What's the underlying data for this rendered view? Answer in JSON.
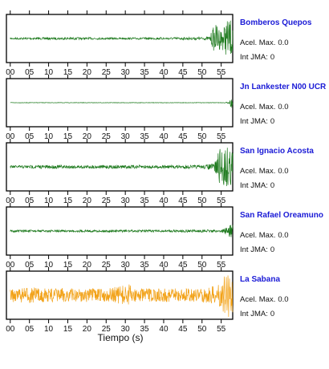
{
  "colors": {
    "trace": "#1e7a1e",
    "highlight_trace": "#f2a218",
    "station_name": "#1a1ad6"
  },
  "stations": [
    {
      "name": "Bomberos Quepos",
      "acel_label": "Acel. Max.",
      "acel_value": "0.0",
      "jma_label": "Int JMA:",
      "jma_value": "0"
    },
    {
      "name": "Jn Lankester N00 UCR",
      "acel_label": "Acel. Max.",
      "acel_value": "0.0",
      "jma_label": "Int JMA:",
      "jma_value": "0"
    },
    {
      "name": "San Ignacio Acosta",
      "acel_label": "Acel. Max.",
      "acel_value": "0.0",
      "jma_label": "Int JMA:",
      "jma_value": "0"
    },
    {
      "name": "San Rafael Oreamuno",
      "acel_label": "Acel. Max.",
      "acel_value": "0.0",
      "jma_label": "Int JMA:",
      "jma_value": "0"
    },
    {
      "name": "La Sabana",
      "acel_label": "Acel. Max.",
      "acel_value": "0.0",
      "jma_label": "Int JMA:",
      "jma_value": "0"
    }
  ],
  "x_label": "Tiempo (s)",
  "chart_data": {
    "type": "line",
    "xlim": [
      -1,
      58
    ],
    "x_ticks": [
      0,
      5,
      10,
      15,
      20,
      25,
      30,
      35,
      40,
      45,
      50,
      55
    ],
    "x_tick_labels": [
      "00",
      "05",
      "10",
      "15",
      "20",
      "25",
      "30",
      "35",
      "40",
      "45",
      "50",
      "55"
    ],
    "series": [
      {
        "name": "Bomberos Quepos",
        "color": "#1e7a1e",
        "envelope": [
          [
            0,
            0.04
          ],
          [
            10,
            0.05
          ],
          [
            20,
            0.05
          ],
          [
            30,
            0.04
          ],
          [
            40,
            0.05
          ],
          [
            50,
            0.06
          ],
          [
            52,
            0.08
          ],
          [
            53,
            0.55
          ],
          [
            54,
            0.65
          ],
          [
            55,
            0.4
          ],
          [
            56,
            0.7
          ],
          [
            57,
            0.85
          ],
          [
            58,
            0.8
          ]
        ]
      },
      {
        "name": "Jn Lankester N00 UCR",
        "color": "#1e7a1e",
        "envelope": [
          [
            0,
            0.01
          ],
          [
            56,
            0.01
          ],
          [
            57,
            0.04
          ],
          [
            58,
            0.3
          ]
        ]
      },
      {
        "name": "San Ignacio Acosta",
        "color": "#1e7a1e",
        "envelope": [
          [
            0,
            0.06
          ],
          [
            10,
            0.08
          ],
          [
            20,
            0.07
          ],
          [
            30,
            0.08
          ],
          [
            40,
            0.07
          ],
          [
            50,
            0.08
          ],
          [
            53,
            0.15
          ],
          [
            54,
            0.55
          ],
          [
            55,
            0.95
          ],
          [
            56,
            1.0
          ],
          [
            57,
            0.9
          ],
          [
            58,
            0.9
          ]
        ]
      },
      {
        "name": "San Rafael Oreamuno",
        "color": "#1e7a1e",
        "envelope": [
          [
            0,
            0.05
          ],
          [
            20,
            0.05
          ],
          [
            40,
            0.05
          ],
          [
            55,
            0.06
          ],
          [
            56,
            0.12
          ],
          [
            57,
            0.25
          ],
          [
            58,
            0.3
          ]
        ]
      },
      {
        "name": "La Sabana",
        "color": "#f2a218",
        "envelope": [
          [
            0,
            0.3
          ],
          [
            5,
            0.35
          ],
          [
            10,
            0.3
          ],
          [
            15,
            0.33
          ],
          [
            20,
            0.3
          ],
          [
            25,
            0.3
          ],
          [
            30,
            0.45
          ],
          [
            31,
            0.5
          ],
          [
            32,
            0.3
          ],
          [
            40,
            0.3
          ],
          [
            45,
            0.3
          ],
          [
            50,
            0.3
          ],
          [
            54,
            0.45
          ],
          [
            55,
            0.55
          ],
          [
            56,
            0.9
          ],
          [
            57,
            1.0
          ],
          [
            58,
            0.95
          ]
        ]
      }
    ]
  }
}
